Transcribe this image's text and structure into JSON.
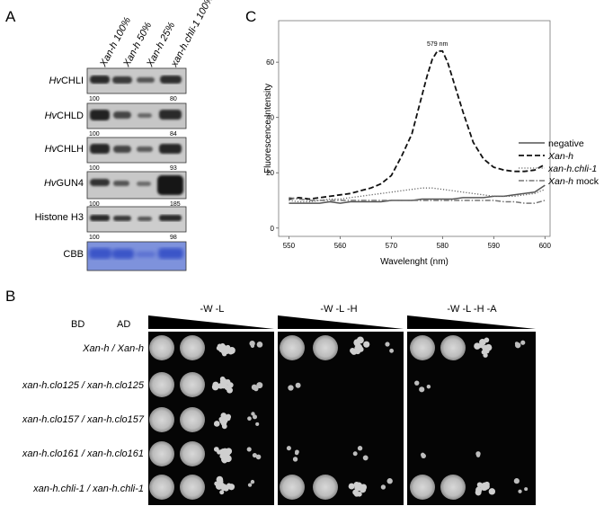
{
  "panel_a": {
    "letter": "A",
    "lane_headers": [
      "Xan-h 100%",
      "Xan-h 50%",
      "Xan-h 25%",
      "xan-h.chli-1 100%"
    ],
    "rows": [
      {
        "label_prefix": "Hv",
        "label": "CHLI",
        "nums": [
          "100",
          "80"
        ]
      },
      {
        "label_prefix": "Hv",
        "label": "CHLD",
        "nums": [
          "100",
          "84"
        ]
      },
      {
        "label_prefix": "Hv",
        "label": "CHLH",
        "nums": [
          "100",
          "93"
        ]
      },
      {
        "label_prefix": "Hv",
        "label": "GUN4",
        "nums": [
          "100",
          "185"
        ]
      },
      {
        "label_prefix": "",
        "label": "Histone H3",
        "nums": [
          "100",
          "98"
        ]
      },
      {
        "label_prefix": "",
        "label": "CBB",
        "nums": []
      }
    ],
    "stain_color": "#3a55c8"
  },
  "panel_b": {
    "letter": "B",
    "col_bd": "BD",
    "col_ad": "AD",
    "media": [
      "-W -L",
      "-W -L -H",
      "-W -L -H -A"
    ],
    "strains": [
      "Xan-h / Xan-h",
      "xan-h.clo125 / xan-h.clo125",
      "xan-h.clo157 / xan-h.clo157",
      "xan-h.clo161 / xan-h.clo161",
      "xan-h.chli-1 / xan-h.chli-1"
    ]
  },
  "panel_c": {
    "letter": "C",
    "chart_data": {
      "type": "line",
      "xlabel": "Wavelenght (nm)",
      "ylabel": "Fluorescence Intensity",
      "xlim": [
        548,
        601
      ],
      "ylim": [
        -3,
        75
      ],
      "xticks": [
        "550",
        "560",
        "570",
        "580",
        "590",
        "600"
      ],
      "yticks": [
        "0",
        "20",
        "40",
        "60"
      ],
      "annotation": {
        "text": "579 nm",
        "x": 579,
        "y": 65
      },
      "grid": false,
      "legend": "right",
      "series": [
        {
          "name": "negative",
          "style": "solid",
          "color": "#555555",
          "x": [
            550,
            552,
            554,
            556,
            558,
            560,
            562,
            564,
            566,
            568,
            570,
            572,
            574,
            576,
            578,
            580,
            582,
            584,
            586,
            588,
            590,
            592,
            594,
            596,
            598,
            600
          ],
          "y": [
            9,
            9,
            9,
            9,
            9.5,
            9,
            9.5,
            9.5,
            9.5,
            9.5,
            10,
            10,
            10,
            10.5,
            10.5,
            10.5,
            10.5,
            11,
            11,
            11,
            11.5,
            11.5,
            12,
            12.5,
            13,
            15.5
          ]
        },
        {
          "name": "Xan-h",
          "style": "dashed",
          "color": "#111111",
          "x": [
            550,
            552,
            554,
            556,
            558,
            560,
            562,
            564,
            566,
            568,
            570,
            572,
            574,
            576,
            577,
            578,
            579,
            580,
            581,
            582,
            584,
            586,
            588,
            590,
            592,
            594,
            596,
            598,
            600
          ],
          "y": [
            10.5,
            11,
            10.5,
            11,
            11.5,
            12,
            12.5,
            13.5,
            14.5,
            16,
            19,
            26,
            34,
            48,
            55,
            61,
            64,
            64,
            60,
            54,
            42,
            31,
            25,
            22,
            21,
            20.5,
            20.5,
            21,
            23
          ]
        },
        {
          "name": "xan-h.chli-1",
          "style": "dotted",
          "color": "#666666",
          "x": [
            550,
            552,
            554,
            556,
            558,
            560,
            562,
            564,
            566,
            568,
            570,
            572,
            574,
            576,
            578,
            580,
            582,
            584,
            586,
            588,
            590,
            592,
            594,
            596,
            598,
            600
          ],
          "y": [
            10,
            9.5,
            9.5,
            10,
            10.5,
            10.5,
            11,
            11.5,
            12,
            12.5,
            13,
            13.5,
            14,
            14.5,
            14.5,
            14,
            13.5,
            13,
            12.5,
            12,
            11.5,
            11.5,
            11.5,
            12,
            12.5,
            14
          ]
        },
        {
          "name": "Xan-h mock",
          "style": "dashdot",
          "color": "#777777",
          "x": [
            550,
            552,
            554,
            556,
            558,
            560,
            562,
            564,
            566,
            568,
            570,
            572,
            574,
            576,
            578,
            580,
            582,
            584,
            586,
            588,
            590,
            592,
            594,
            596,
            598,
            600
          ],
          "y": [
            11,
            10.5,
            10,
            10,
            10,
            10,
            10,
            10,
            10,
            10,
            10,
            10,
            10,
            10,
            10,
            10,
            10,
            10,
            10,
            10,
            10,
            9.5,
            9.5,
            9,
            9,
            10
          ]
        }
      ]
    }
  }
}
